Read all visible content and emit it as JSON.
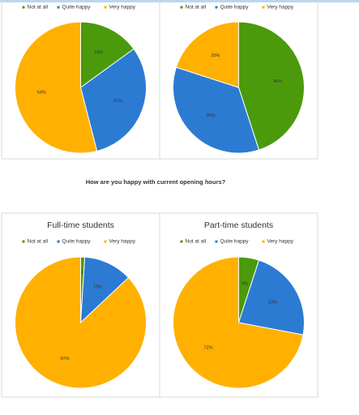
{
  "caption": "How are you happy with current opening hours?",
  "chart_data": [
    {
      "type": "pie",
      "categories": [
        "Not at all",
        "Quite happy",
        "Very happy"
      ],
      "values": [
        15,
        31,
        54
      ],
      "value_labels": [
        "15%",
        "31%",
        "54%"
      ],
      "colors": [
        "#4b9a0c",
        "#2c7bd2",
        "#ffb000"
      ]
    },
    {
      "type": "pie",
      "categories": [
        "Not at all",
        "Quite happy",
        "Very happy"
      ],
      "values": [
        45,
        35,
        20
      ],
      "value_labels": [
        "45%",
        "35%",
        "20%"
      ],
      "colors": [
        "#4b9a0c",
        "#2c7bd2",
        "#ffb000"
      ]
    },
    {
      "type": "pie",
      "title": "Full-time students",
      "categories": [
        "Not at all",
        "Quite happy",
        "Very happy"
      ],
      "values": [
        1,
        12,
        87
      ],
      "value_labels": [
        "1%",
        "12%",
        "87%"
      ],
      "colors": [
        "#4b9a0c",
        "#2c7bd2",
        "#ffb000"
      ]
    },
    {
      "type": "pie",
      "title": "Part-time students",
      "categories": [
        "Not at all",
        "Quite happy",
        "Very happy"
      ],
      "values": [
        5,
        23,
        72
      ],
      "value_labels": [
        "5%",
        "23%",
        "72%"
      ],
      "colors": [
        "#4b9a0c",
        "#2c7bd2",
        "#ffb000"
      ]
    }
  ]
}
